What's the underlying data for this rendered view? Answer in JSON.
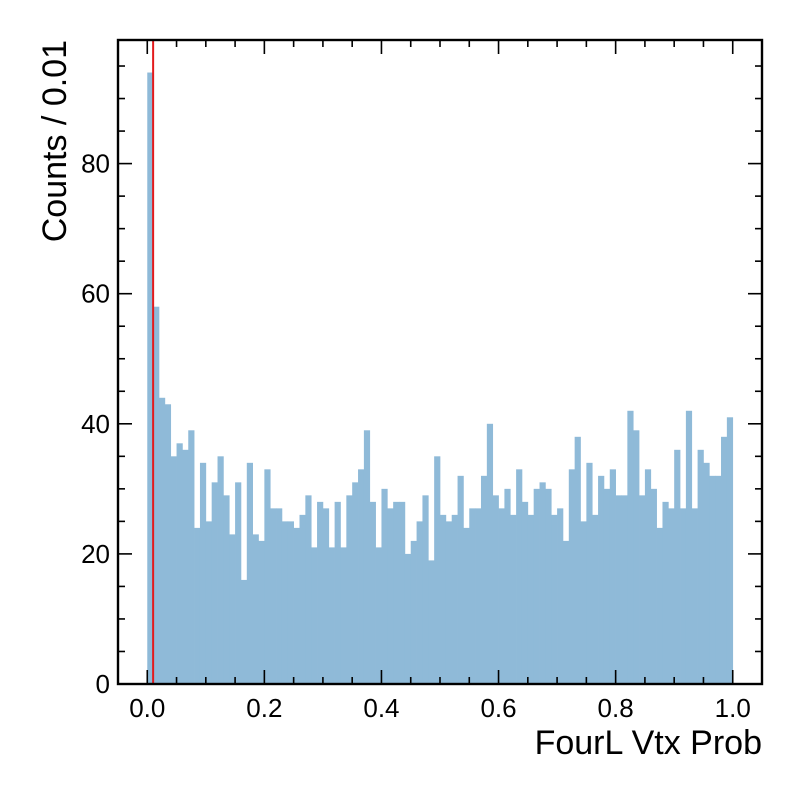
{
  "chart_data": {
    "type": "bar",
    "title": "",
    "xlabel": "FourL Vtx Prob",
    "ylabel": "Counts / 0.01",
    "xlim": [
      -0.05,
      1.05
    ],
    "ylim": [
      0,
      99
    ],
    "grid": false,
    "bin_width": 0.01,
    "bin_start": 0.0,
    "x_ticks": [
      0.0,
      0.2,
      0.4,
      0.6,
      0.8,
      1.0
    ],
    "x_tick_labels": [
      "0.0",
      "0.2",
      "0.4",
      "0.6",
      "0.8",
      "1.0"
    ],
    "y_ticks": [
      0,
      20,
      40,
      60,
      80
    ],
    "y_tick_labels": [
      "0",
      "20",
      "40",
      "60",
      "80"
    ],
    "bar_color": "#8fbad8",
    "cut_line": {
      "x": 0.01,
      "color": "#e31a1c"
    },
    "values": [
      94,
      58,
      44,
      43,
      35,
      37,
      36,
      39,
      24,
      34,
      25,
      31,
      35,
      29,
      23,
      31,
      16,
      34,
      23,
      22,
      33,
      27,
      27,
      25,
      25,
      24,
      26,
      29,
      21,
      28,
      27,
      21,
      28,
      21,
      29,
      31,
      33,
      39,
      28,
      21,
      30,
      27,
      28,
      28,
      20,
      22,
      25,
      29,
      19,
      35,
      26,
      25,
      26,
      32,
      24,
      27,
      27,
      32,
      40,
      29,
      27,
      30,
      26,
      33,
      28,
      26,
      30,
      31,
      30,
      26,
      27,
      22,
      33,
      38,
      25,
      34,
      26,
      32,
      30,
      33,
      29,
      29,
      42,
      39,
      29,
      33,
      30,
      24,
      28,
      27,
      36,
      27,
      42,
      27,
      36,
      34,
      32,
      32,
      38,
      41
    ]
  }
}
